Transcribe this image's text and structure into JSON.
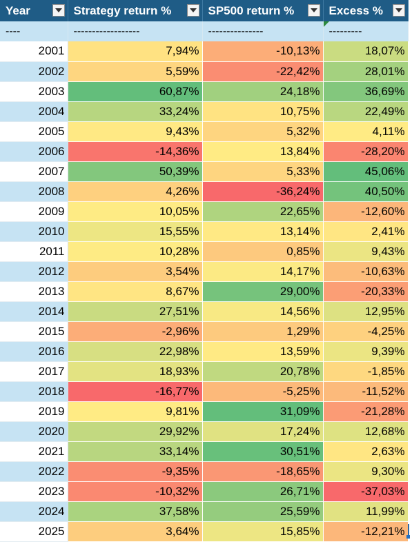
{
  "headers": [
    {
      "label": "Year"
    },
    {
      "label": "Strategy return %"
    },
    {
      "label": "SP500 return %"
    },
    {
      "label": "Excess %"
    }
  ],
  "dash_row": [
    "----",
    "------------------",
    "---------------",
    "---------"
  ],
  "rows": [
    {
      "year": "2001",
      "strategy": "7,94%",
      "sp500": "-10,13%",
      "excess": "18,07%",
      "vals": [
        7.94,
        -10.13,
        18.07
      ]
    },
    {
      "year": "2002",
      "strategy": "5,59%",
      "sp500": "-22,42%",
      "excess": "28,01%",
      "vals": [
        5.59,
        -22.42,
        28.01
      ]
    },
    {
      "year": "2003",
      "strategy": "60,87%",
      "sp500": "24,18%",
      "excess": "36,69%",
      "vals": [
        60.87,
        24.18,
        36.69
      ]
    },
    {
      "year": "2004",
      "strategy": "33,24%",
      "sp500": "10,75%",
      "excess": "22,49%",
      "vals": [
        33.24,
        10.75,
        22.49
      ]
    },
    {
      "year": "2005",
      "strategy": "9,43%",
      "sp500": "5,32%",
      "excess": "4,11%",
      "vals": [
        9.43,
        5.32,
        4.11
      ]
    },
    {
      "year": "2006",
      "strategy": "-14,36%",
      "sp500": "13,84%",
      "excess": "-28,20%",
      "vals": [
        -14.36,
        13.84,
        -28.2
      ]
    },
    {
      "year": "2007",
      "strategy": "50,39%",
      "sp500": "5,33%",
      "excess": "45,06%",
      "vals": [
        50.39,
        5.33,
        45.06
      ]
    },
    {
      "year": "2008",
      "strategy": "4,26%",
      "sp500": "-36,24%",
      "excess": "40,50%",
      "vals": [
        4.26,
        -36.24,
        40.5
      ]
    },
    {
      "year": "2009",
      "strategy": "10,05%",
      "sp500": "22,65%",
      "excess": "-12,60%",
      "vals": [
        10.05,
        22.65,
        -12.6
      ]
    },
    {
      "year": "2010",
      "strategy": "15,55%",
      "sp500": "13,14%",
      "excess": "2,41%",
      "vals": [
        15.55,
        13.14,
        2.41
      ]
    },
    {
      "year": "2011",
      "strategy": "10,28%",
      "sp500": "0,85%",
      "excess": "9,43%",
      "vals": [
        10.28,
        0.85,
        9.43
      ]
    },
    {
      "year": "2012",
      "strategy": "3,54%",
      "sp500": "14,17%",
      "excess": "-10,63%",
      "vals": [
        3.54,
        14.17,
        -10.63
      ]
    },
    {
      "year": "2013",
      "strategy": "8,67%",
      "sp500": "29,00%",
      "excess": "-20,33%",
      "vals": [
        8.67,
        29.0,
        -20.33
      ]
    },
    {
      "year": "2014",
      "strategy": "27,51%",
      "sp500": "14,56%",
      "excess": "12,95%",
      "vals": [
        27.51,
        14.56,
        12.95
      ]
    },
    {
      "year": "2015",
      "strategy": "-2,96%",
      "sp500": "1,29%",
      "excess": "-4,25%",
      "vals": [
        -2.96,
        1.29,
        -4.25
      ]
    },
    {
      "year": "2016",
      "strategy": "22,98%",
      "sp500": "13,59%",
      "excess": "9,39%",
      "vals": [
        22.98,
        13.59,
        9.39
      ]
    },
    {
      "year": "2017",
      "strategy": "18,93%",
      "sp500": "20,78%",
      "excess": "-1,85%",
      "vals": [
        18.93,
        20.78,
        -1.85
      ]
    },
    {
      "year": "2018",
      "strategy": "-16,77%",
      "sp500": "-5,25%",
      "excess": "-11,52%",
      "vals": [
        -16.77,
        -5.25,
        -11.52
      ]
    },
    {
      "year": "2019",
      "strategy": "9,81%",
      "sp500": "31,09%",
      "excess": "-21,28%",
      "vals": [
        9.81,
        31.09,
        -21.28
      ]
    },
    {
      "year": "2020",
      "strategy": "29,92%",
      "sp500": "17,24%",
      "excess": "12,68%",
      "vals": [
        29.92,
        17.24,
        12.68
      ]
    },
    {
      "year": "2021",
      "strategy": "33,14%",
      "sp500": "30,51%",
      "excess": "2,63%",
      "vals": [
        33.14,
        30.51,
        2.63
      ]
    },
    {
      "year": "2022",
      "strategy": "-9,35%",
      "sp500": "-18,65%",
      "excess": "9,30%",
      "vals": [
        -9.35,
        -18.65,
        9.3
      ]
    },
    {
      "year": "2023",
      "strategy": "-10,32%",
      "sp500": "26,71%",
      "excess": "-37,03%",
      "vals": [
        -10.32,
        26.71,
        -37.03
      ]
    },
    {
      "year": "2024",
      "strategy": "37,58%",
      "sp500": "25,59%",
      "excess": "11,99%",
      "vals": [
        37.58,
        25.59,
        11.99
      ]
    },
    {
      "year": "2025",
      "strategy": "3,64%",
      "sp500": "15,85%",
      "excess": "-12,21%",
      "vals": [
        3.64,
        15.85,
        -12.21
      ]
    }
  ],
  "colors": {
    "header_bg": "#1f5c86",
    "band_bg": "#c6e3f3",
    "scale_low": "#f8696b",
    "scale_mid": "#ffeb84",
    "scale_high": "#63be7b"
  },
  "icons": {
    "filter": "filter-dropdown-icon"
  }
}
